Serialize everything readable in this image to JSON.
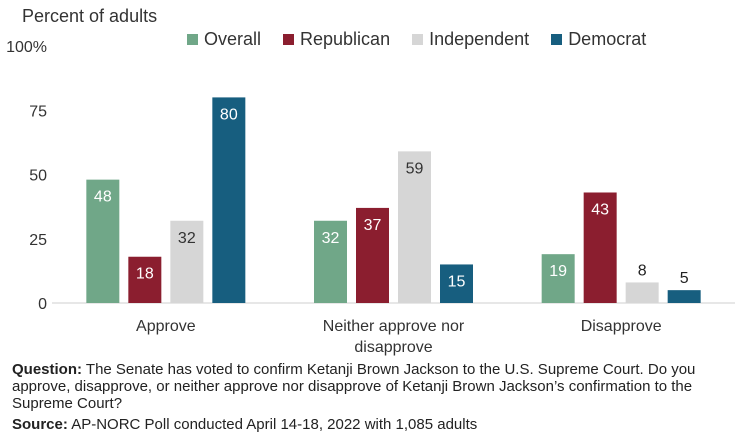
{
  "chart_data": {
    "type": "bar",
    "title": "",
    "ylabel": "Percent of adults",
    "xlabel": "",
    "ylim": [
      0,
      100
    ],
    "yticks": [
      "0",
      "25",
      "50",
      "75",
      "100%"
    ],
    "ytick_values": [
      0,
      25,
      50,
      75,
      100
    ],
    "categories": [
      "Approve",
      "Neither approve nor disapprove",
      "Disapprove"
    ],
    "category_lines": [
      [
        "Approve"
      ],
      [
        "Neither approve nor",
        "disapprove"
      ],
      [
        "Disapprove"
      ]
    ],
    "series": [
      {
        "name": "Overall",
        "color": "#70a788",
        "label_color": "#ffffff",
        "values": [
          48,
          32,
          19
        ]
      },
      {
        "name": "Republican",
        "color": "#8b1e2f",
        "label_color": "#ffffff",
        "values": [
          18,
          37,
          43
        ]
      },
      {
        "name": "Independent",
        "color": "#d6d6d6",
        "label_color": "#333333",
        "values": [
          32,
          59,
          8
        ]
      },
      {
        "name": "Democrat",
        "color": "#175e7f",
        "label_color": "#ffffff",
        "values": [
          80,
          15,
          5
        ]
      }
    ],
    "legend_position": "top",
    "grid": false
  },
  "footnote": {
    "question_label": "Question:",
    "question_text": "The Senate has voted to confirm Ketanji Brown Jackson to the U.S. Supreme Court. Do you approve, disapprove, or neither approve nor disapprove of Ketanji Brown Jackson’s confirmation to the Supreme Court?",
    "source_label": "Source:",
    "source_text": "AP-NORC Poll conducted April 14-18, 2022 with 1,085 adults"
  }
}
